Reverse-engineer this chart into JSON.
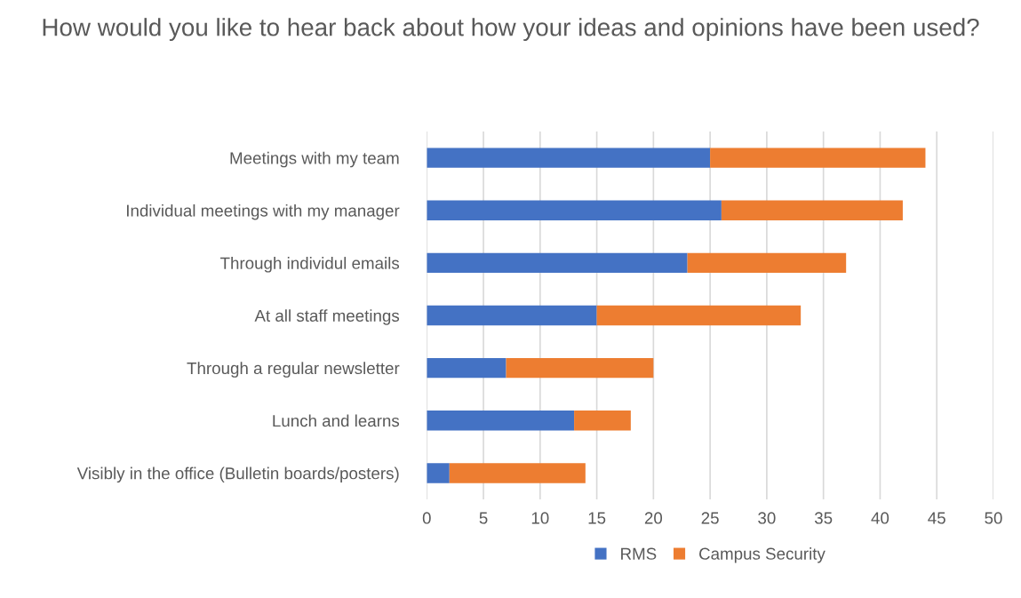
{
  "chart_data": {
    "type": "bar",
    "orientation": "horizontal",
    "stacked": true,
    "title": "How would you like to hear back about how your ideas and opinions have been used?",
    "categories": [
      "Meetings with my team",
      "Individual meetings with my manager",
      "Through individul emails",
      "At all staff meetings",
      "Through a regular newsletter",
      "Lunch and learns",
      "Visibly in the office (Bulletin boards/posters)"
    ],
    "series": [
      {
        "name": "RMS",
        "color": "#4472c4",
        "values": [
          25,
          26,
          23,
          15,
          7,
          13,
          2
        ]
      },
      {
        "name": "Campus Security",
        "color": "#ed7d31",
        "values": [
          19,
          16,
          14,
          18,
          13,
          5,
          12
        ]
      }
    ],
    "xlim": [
      0,
      50
    ],
    "xticks": [
      0,
      5,
      10,
      15,
      20,
      25,
      30,
      35,
      40,
      45,
      50
    ],
    "grid": "x",
    "legend": "bottom"
  }
}
